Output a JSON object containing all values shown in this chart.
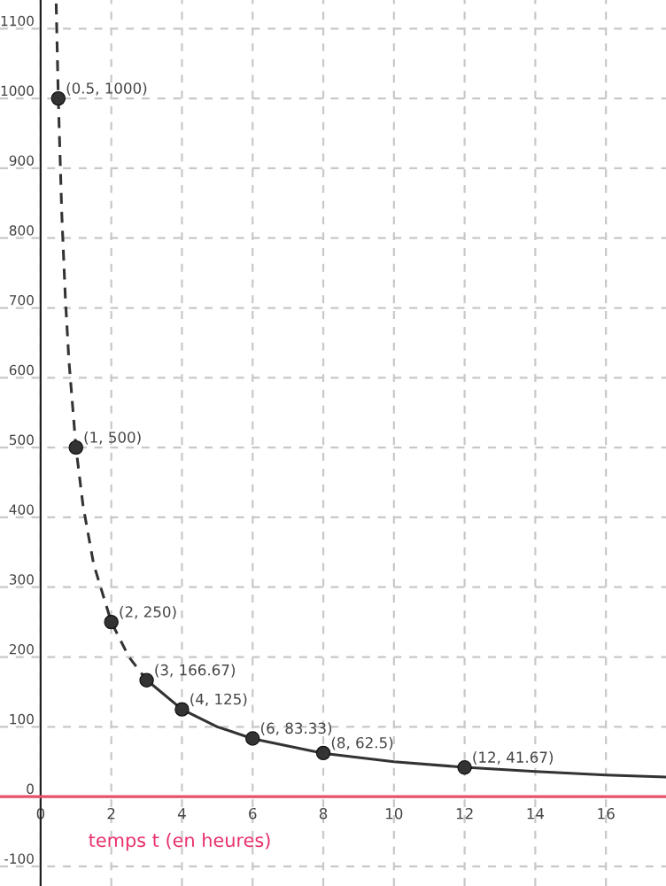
{
  "chart_data": {
    "type": "line",
    "xlabel": "temps t (en heures)",
    "xlim": [
      -1.15,
      17.7
    ],
    "ylim": [
      -128,
      1141
    ],
    "xticks": [
      0,
      2,
      4,
      6,
      8,
      10,
      12,
      14,
      16
    ],
    "yticks": [
      -100,
      0,
      100,
      200,
      300,
      400,
      500,
      600,
      700,
      800,
      900,
      1000,
      1100
    ],
    "grid": true,
    "series": [
      {
        "line_style": "dashed",
        "color": "#333333",
        "x": [
          0.44,
          0.5,
          0.6,
          0.7,
          0.8,
          1,
          1.2,
          1.5,
          2,
          2.5,
          3
        ],
        "values": [
          1136,
          1000,
          833,
          714,
          625,
          500,
          417,
          333,
          250,
          200,
          167
        ]
      },
      {
        "line_style": "solid",
        "color": "#333333",
        "x": [
          3,
          4,
          5,
          6,
          8,
          10,
          12,
          14,
          16,
          17.7
        ],
        "values": [
          167,
          125,
          100,
          83,
          62,
          50,
          42,
          36,
          31,
          28
        ]
      },
      {
        "type": "scatter",
        "marker": "circle",
        "color": "#333333",
        "x": [
          0.5,
          1,
          2,
          3,
          4,
          6,
          8,
          12
        ],
        "values": [
          1000,
          500,
          250,
          166.67,
          125,
          83.33,
          62.5,
          41.67
        ],
        "value_labels": [
          "(0.5, 1000)",
          "(1, 500)",
          "(2, 250)",
          "(3, 166.67)",
          "(4, 125)",
          "(6, 83.33)",
          "(8, 62.5)",
          "(12, 41.67)"
        ]
      }
    ]
  }
}
